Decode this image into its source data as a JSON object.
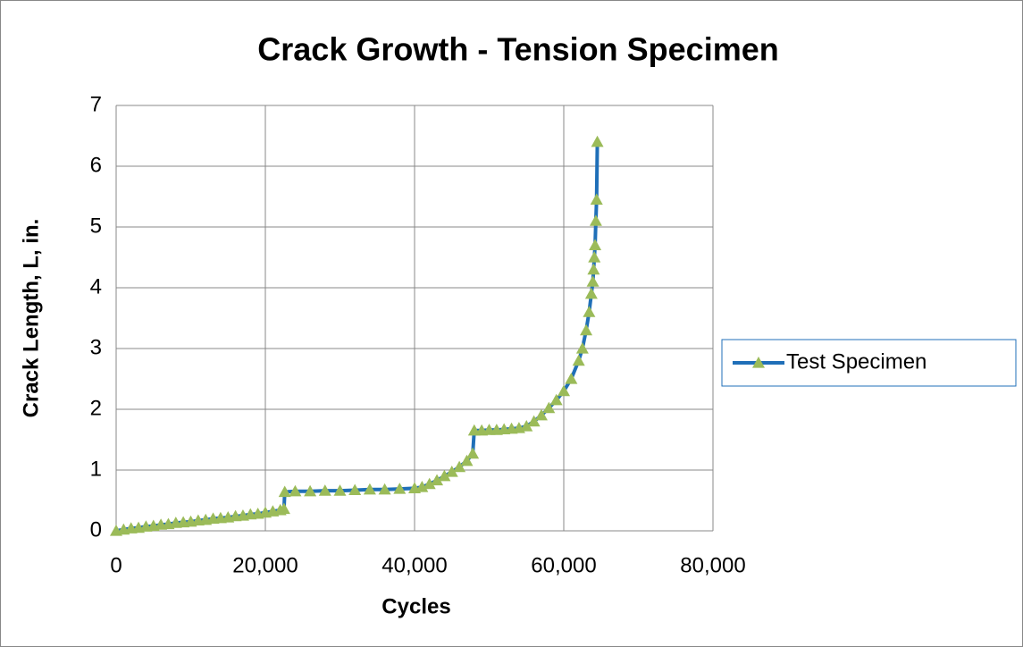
{
  "chart_data": {
    "type": "line",
    "title": "Crack Growth - Tension Specimen",
    "xlabel": "Cycles",
    "ylabel": "Crack Length, L, in.",
    "x": [
      0,
      1000,
      2000,
      3000,
      4000,
      5000,
      6000,
      7000,
      8000,
      9000,
      10000,
      11000,
      12000,
      13000,
      14000,
      15000,
      16000,
      17000,
      18000,
      19000,
      20000,
      21000,
      22000,
      22500,
      22600,
      24000,
      26000,
      28000,
      30000,
      32000,
      34000,
      36000,
      38000,
      40000,
      41000,
      42000,
      43000,
      44000,
      45000,
      46000,
      47000,
      47800,
      48000,
      49000,
      50000,
      51000,
      52000,
      53000,
      54000,
      55000,
      56000,
      57000,
      58000,
      59000,
      60000,
      61000,
      62000,
      62500,
      63000,
      63400,
      63700,
      63900,
      64000,
      64100,
      64200,
      64300,
      64400,
      64500
    ],
    "series": [
      {
        "name": "Test Specimen",
        "color": "#1f6fb8",
        "marker_color": "#9bbb59",
        "values": [
          0,
          0.02,
          0.04,
          0.05,
          0.07,
          0.08,
          0.1,
          0.11,
          0.13,
          0.14,
          0.15,
          0.17,
          0.18,
          0.2,
          0.21,
          0.22,
          0.24,
          0.25,
          0.27,
          0.28,
          0.3,
          0.32,
          0.34,
          0.36,
          0.64,
          0.65,
          0.65,
          0.66,
          0.66,
          0.67,
          0.68,
          0.68,
          0.69,
          0.7,
          0.72,
          0.77,
          0.83,
          0.9,
          0.97,
          1.05,
          1.15,
          1.27,
          1.65,
          1.65,
          1.66,
          1.66,
          1.67,
          1.68,
          1.69,
          1.72,
          1.8,
          1.9,
          2.02,
          2.15,
          2.3,
          2.5,
          2.8,
          3.0,
          3.3,
          3.6,
          3.9,
          4.1,
          4.3,
          4.5,
          4.7,
          5.1,
          5.45,
          6.4
        ]
      }
    ],
    "xlim": [
      0,
      80000
    ],
    "xticks": [
      0,
      {
        "value": 20000,
        "label": "20,000"
      },
      {
        "value": 40000,
        "label": "40,000"
      },
      {
        "value": 60000,
        "label": "60,000"
      },
      {
        "value": 80000,
        "label": "80,000"
      }
    ],
    "ylim": [
      0,
      7
    ],
    "yticks": [
      0,
      1,
      2,
      3,
      4,
      5,
      6,
      7
    ],
    "grid": true,
    "legend": "right"
  }
}
